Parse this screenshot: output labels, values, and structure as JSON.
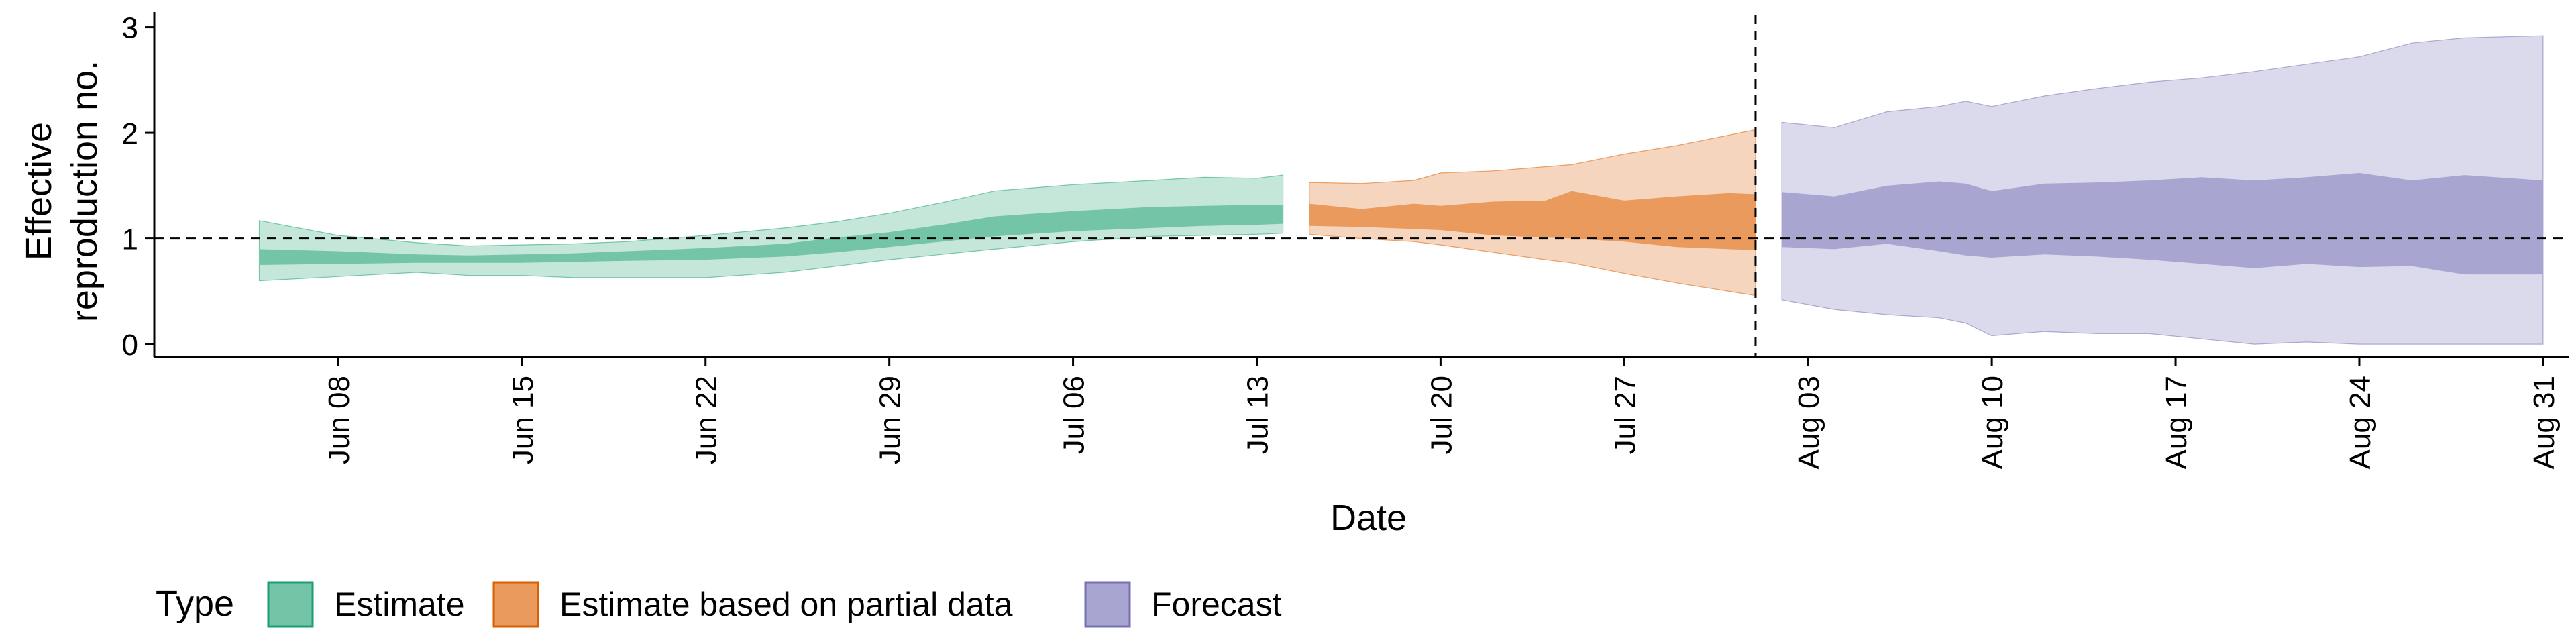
{
  "chart_data": {
    "type": "area",
    "xlabel": "Date",
    "ylabel_lines": [
      "Effective",
      "reproduction no."
    ],
    "ylim": [
      -0.12,
      3.08
    ],
    "xlim": [
      "2020-06-01",
      "2020-09-01"
    ],
    "x_ticks": [
      {
        "date": "2020-06-08",
        "label": "Jun 08"
      },
      {
        "date": "2020-06-15",
        "label": "Jun 15"
      },
      {
        "date": "2020-06-22",
        "label": "Jun 22"
      },
      {
        "date": "2020-06-29",
        "label": "Jun 29"
      },
      {
        "date": "2020-07-06",
        "label": "Jul 06"
      },
      {
        "date": "2020-07-13",
        "label": "Jul 13"
      },
      {
        "date": "2020-07-20",
        "label": "Jul 20"
      },
      {
        "date": "2020-07-27",
        "label": "Jul 27"
      },
      {
        "date": "2020-08-03",
        "label": "Aug 03"
      },
      {
        "date": "2020-08-10",
        "label": "Aug 10"
      },
      {
        "date": "2020-08-17",
        "label": "Aug 17"
      },
      {
        "date": "2020-08-24",
        "label": "Aug 24"
      },
      {
        "date": "2020-08-31",
        "label": "Aug 31"
      }
    ],
    "y_ticks": [
      0,
      1,
      2,
      3
    ],
    "reference_line_y": 1,
    "forecast_start_date": "2020-08-01",
    "grid": false,
    "legend": {
      "position": "bottom-left",
      "title": "Type",
      "entries": [
        {
          "label": "Estimate",
          "fill": "#74c4a8",
          "stroke": "#1b9e77"
        },
        {
          "label": "Estimate based on partial data",
          "fill": "#e99a5c",
          "stroke": "#d95f02"
        },
        {
          "label": "Forecast",
          "fill": "#a8a6d0",
          "stroke": "#7570b3"
        }
      ]
    },
    "series": [
      {
        "name": "Estimate",
        "outer_color": "#c5e7da",
        "inner_color": "#74c4a8",
        "edge_color": "#1b9e77",
        "x": [
          "2020-06-05",
          "2020-06-08",
          "2020-06-11",
          "2020-06-13",
          "2020-06-15",
          "2020-06-17",
          "2020-06-19",
          "2020-06-22",
          "2020-06-25",
          "2020-06-27",
          "2020-06-29",
          "2020-07-01",
          "2020-07-03",
          "2020-07-06",
          "2020-07-09",
          "2020-07-11",
          "2020-07-13",
          "2020-07-14"
        ],
        "outer_low": [
          0.6,
          0.64,
          0.68,
          0.65,
          0.65,
          0.63,
          0.63,
          0.63,
          0.68,
          0.74,
          0.8,
          0.85,
          0.9,
          0.97,
          1.02,
          1.03,
          1.04,
          1.05
        ],
        "inner_low": [
          0.75,
          0.76,
          0.77,
          0.77,
          0.77,
          0.78,
          0.79,
          0.8,
          0.83,
          0.87,
          0.92,
          0.97,
          1.02,
          1.07,
          1.1,
          1.12,
          1.13,
          1.14
        ],
        "inner_high": [
          0.9,
          0.88,
          0.85,
          0.84,
          0.85,
          0.86,
          0.88,
          0.91,
          0.95,
          1.01,
          1.06,
          1.13,
          1.21,
          1.26,
          1.3,
          1.31,
          1.32,
          1.32
        ],
        "outer_high": [
          1.17,
          1.03,
          0.96,
          0.93,
          0.94,
          0.95,
          0.97,
          1.03,
          1.1,
          1.16,
          1.24,
          1.34,
          1.45,
          1.51,
          1.55,
          1.58,
          1.57,
          1.6
        ]
      },
      {
        "name": "Estimate based on partial data",
        "outer_color": "#f5d5bd",
        "inner_color": "#e99a5c",
        "edge_color": "#d95f02",
        "x": [
          "2020-07-15",
          "2020-07-17",
          "2020-07-19",
          "2020-07-20",
          "2020-07-22",
          "2020-07-24",
          "2020-07-25",
          "2020-07-27",
          "2020-07-29",
          "2020-07-31",
          "2020-08-01"
        ],
        "outer_low": [
          1.04,
          1.0,
          0.97,
          0.94,
          0.87,
          0.8,
          0.77,
          0.67,
          0.58,
          0.5,
          0.46
        ],
        "inner_low": [
          1.12,
          1.11,
          1.09,
          1.08,
          1.03,
          1.01,
          1.0,
          0.97,
          0.92,
          0.9,
          0.89
        ],
        "inner_high": [
          1.33,
          1.28,
          1.33,
          1.31,
          1.35,
          1.36,
          1.45,
          1.36,
          1.4,
          1.43,
          1.42
        ],
        "outer_high": [
          1.53,
          1.52,
          1.55,
          1.62,
          1.64,
          1.68,
          1.7,
          1.8,
          1.88,
          1.98,
          2.03
        ]
      },
      {
        "name": "Forecast",
        "outer_color": "#dbdaec",
        "inner_color": "#a8a6d0",
        "edge_color": "#7570b3",
        "x": [
          "2020-08-02",
          "2020-08-04",
          "2020-08-06",
          "2020-08-08",
          "2020-08-09",
          "2020-08-10",
          "2020-08-12",
          "2020-08-14",
          "2020-08-16",
          "2020-08-18",
          "2020-08-20",
          "2020-08-22",
          "2020-08-24",
          "2020-08-26",
          "2020-08-28",
          "2020-08-31"
        ],
        "outer_low": [
          0.42,
          0.33,
          0.28,
          0.25,
          0.2,
          0.08,
          0.12,
          0.1,
          0.1,
          0.05,
          0.0,
          0.02,
          0.0,
          0.0,
          0.0,
          0.0
        ],
        "inner_low": [
          0.92,
          0.9,
          0.95,
          0.88,
          0.84,
          0.82,
          0.85,
          0.83,
          0.8,
          0.76,
          0.72,
          0.76,
          0.73,
          0.74,
          0.66,
          0.66
        ],
        "inner_high": [
          1.44,
          1.4,
          1.5,
          1.54,
          1.52,
          1.45,
          1.52,
          1.53,
          1.55,
          1.58,
          1.55,
          1.58,
          1.62,
          1.55,
          1.6,
          1.55
        ],
        "outer_high": [
          2.1,
          2.05,
          2.2,
          2.25,
          2.3,
          2.25,
          2.35,
          2.42,
          2.48,
          2.52,
          2.58,
          2.65,
          2.72,
          2.85,
          2.9,
          2.92
        ]
      }
    ]
  }
}
